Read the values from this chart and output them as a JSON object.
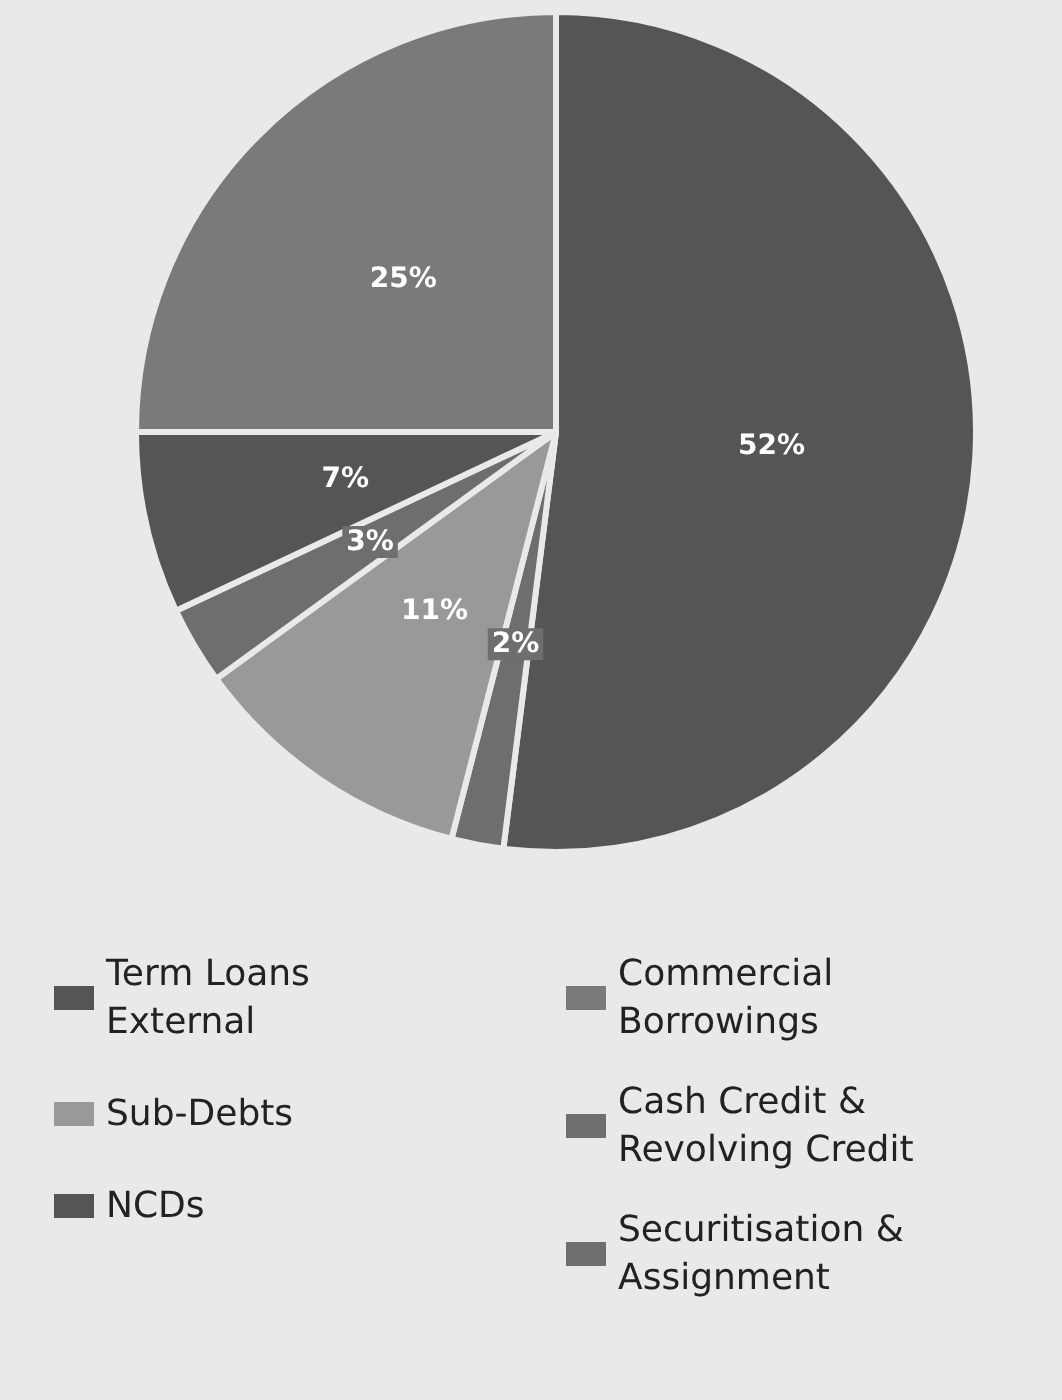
{
  "chart_data": {
    "type": "pie",
    "categories": [
      "Term Loans External",
      "Cash Credit & Revolving Credit",
      "Sub-Debts",
      "Securitisation & Assignment",
      "NCDs",
      "Commercial Borrowings"
    ],
    "values": [
      52,
      2,
      11,
      3,
      7,
      25
    ],
    "value_labels": [
      "52%",
      "2%",
      "11%",
      "3%",
      "7%",
      "25%"
    ],
    "colors": [
      "#555555",
      "#6e6e6e",
      "#999999",
      "#6e6e6e",
      "#555555",
      "#7a7a7a"
    ],
    "legend": "bottom"
  }
}
